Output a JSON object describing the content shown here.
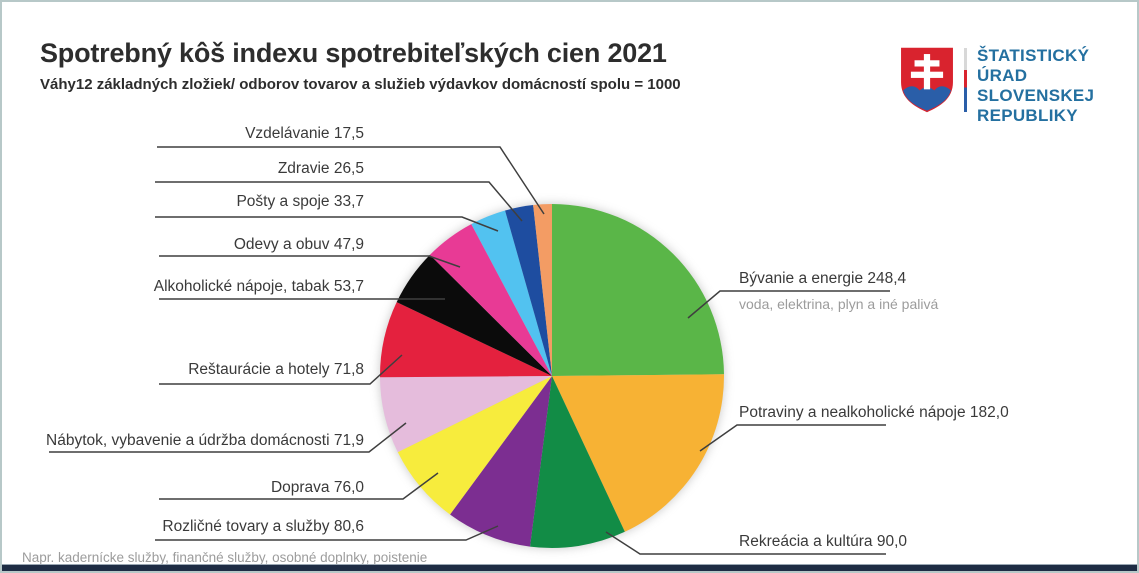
{
  "title": "Spotrebný kôš indexu spotrebiteľských cien 2021",
  "subtitle": "Váhy12 základných zložiek/ odborov tovarov a služieb výdavkov domácností spolu = 1000",
  "footnote": "Napr. kadernícke služby, finančné služby, osobné doplnky, poistenie",
  "logo": {
    "lines": [
      "ŠTATISTICKÝ",
      "ÚRAD",
      "SLOVENSKEJ",
      "REPUBLIKY"
    ],
    "text_color": "#2470a0",
    "shield_red": "#d9232e",
    "shield_blue": "#2a5ea8"
  },
  "chart_data": {
    "type": "pie",
    "title": "Spotrebný kôš indexu spotrebiteľských cien 2021",
    "total": 1000,
    "start_angle_deg": -90,
    "direction": "clockwise",
    "legend_position": "outside-leader-lines",
    "slices": [
      {
        "label": "Bývanie a energie",
        "value": 248.4,
        "display": "Bývanie a energie 248,4",
        "sublabel": "voda, elektrina, plyn a iné palivá",
        "color": "#5ab648"
      },
      {
        "label": "Potraviny a nealkoholické nápoje",
        "value": 182.0,
        "display": "Potraviny a nealkoholické nápoje 182,0",
        "color": "#f7b234"
      },
      {
        "label": "Rekreácia a kultúra",
        "value": 90.0,
        "display": "Rekreácia a kultúra 90,0",
        "color": "#128c46"
      },
      {
        "label": "Rozličné tovary a služby",
        "value": 80.6,
        "display": "Rozličné tovary a služby 80,6",
        "color": "#7c2e91"
      },
      {
        "label": "Doprava",
        "value": 76.0,
        "display": "Doprava 76,0",
        "color": "#f7ec3d"
      },
      {
        "label": "Nábytok, vybavenie a údržba domácnosti",
        "value": 71.9,
        "display": "Nábytok, vybavenie a údržba domácnosti 71,9",
        "color": "#e5bcdc"
      },
      {
        "label": "Reštaurácie a hotely",
        "value": 71.8,
        "display": "Reštaurácie a hotely 71,8",
        "color": "#e4213e"
      },
      {
        "label": "Alkoholické nápoje, tabak",
        "value": 53.7,
        "display": "Alkoholické nápoje, tabak 53,7",
        "color": "#0b0b0b"
      },
      {
        "label": "Odevy a obuv",
        "value": 47.9,
        "display": "Odevy a obuv 47,9",
        "color": "#e83a95"
      },
      {
        "label": "Pošty a spoje",
        "value": 33.7,
        "display": "Pošty a spoje 33,7",
        "color": "#52c2f0"
      },
      {
        "label": "Zdravie",
        "value": 26.5,
        "display": "Zdravie 26,5",
        "color": "#1e4da0"
      },
      {
        "label": "Vzdelávanie",
        "value": 17.5,
        "display": "Vzdelávanie 17,5",
        "color": "#f39c64"
      }
    ]
  }
}
